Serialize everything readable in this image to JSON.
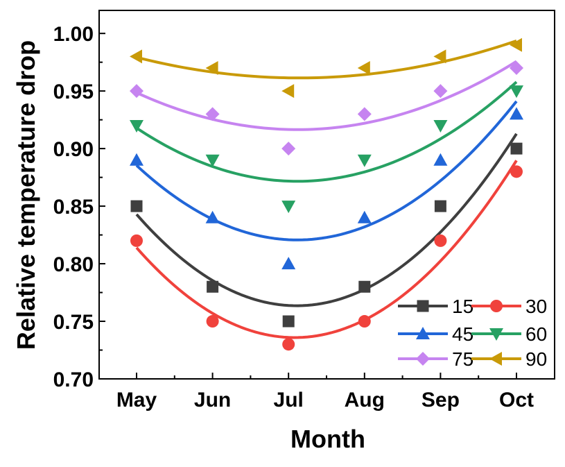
{
  "chart_data": {
    "type": "line",
    "title": "",
    "xlabel": "Month",
    "ylabel": "Relative temperature drop",
    "categories": [
      "May",
      "Jun",
      "Jul",
      "Aug",
      "Sep",
      "Oct"
    ],
    "ylim": [
      0.7,
      1.02
    ],
    "yticks": [
      "0.70",
      "0.75",
      "0.80",
      "0.85",
      "0.90",
      "0.95",
      "1.00"
    ],
    "grid": false,
    "legend_position": "bottom-right",
    "series": [
      {
        "name": "15",
        "marker": "square",
        "color": "#3f3f3f",
        "values": [
          0.85,
          0.78,
          0.75,
          0.78,
          0.85,
          0.9
        ]
      },
      {
        "name": "30",
        "marker": "circle",
        "color": "#f0423c",
        "values": [
          0.82,
          0.75,
          0.73,
          0.75,
          0.82,
          0.88
        ]
      },
      {
        "name": "45",
        "marker": "triangle-up",
        "color": "#2166d8",
        "values": [
          0.89,
          0.84,
          0.8,
          0.84,
          0.89,
          0.93
        ]
      },
      {
        "name": "60",
        "marker": "triangle-down",
        "color": "#27a163",
        "values": [
          0.92,
          0.89,
          0.85,
          0.89,
          0.92,
          0.95
        ]
      },
      {
        "name": "75",
        "marker": "diamond",
        "color": "#c684f0",
        "values": [
          0.95,
          0.93,
          0.9,
          0.93,
          0.95,
          0.97
        ]
      },
      {
        "name": "90",
        "marker": "triangle-left",
        "color": "#c99a08",
        "values": [
          0.98,
          0.97,
          0.95,
          0.97,
          0.98,
          0.99
        ]
      }
    ]
  }
}
